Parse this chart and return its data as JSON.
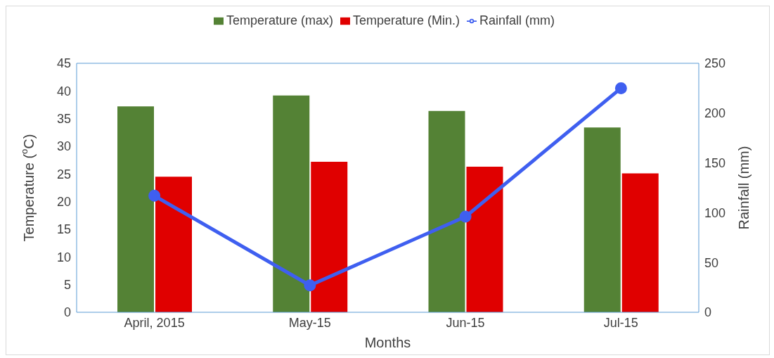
{
  "chart_data": {
    "type": "bar",
    "xlabel": "Months",
    "ylabel": "Temperature ($^{o}$C)",
    "y2label": "Rainfall (mm)",
    "categories": [
      "April, 2015",
      "May-15",
      "Jun-15",
      "Jul-15"
    ],
    "series": [
      {
        "name": "Temperature (max)",
        "color": "#548235",
        "values": [
          37.2,
          39.2,
          36.4,
          33.4
        ]
      },
      {
        "name": "Temperature (Min.)",
        "color": "#e00000",
        "values": [
          24.5,
          27.2,
          26.3,
          25.1
        ]
      },
      {
        "name": "Rainfall (mm)",
        "type": "line",
        "axis": "y2",
        "color": "#3f5ff0",
        "values": [
          117,
          27,
          96,
          225
        ]
      }
    ],
    "ylim": [
      0,
      45
    ],
    "yticks": [
      0,
      5,
      10,
      15,
      20,
      25,
      30,
      35,
      40,
      45
    ],
    "y2lim": [
      0,
      250
    ],
    "y2ticks": [
      0,
      50,
      100,
      150,
      200,
      250
    ],
    "legend": "top",
    "marker": "circle",
    "line_style": "solid"
  }
}
